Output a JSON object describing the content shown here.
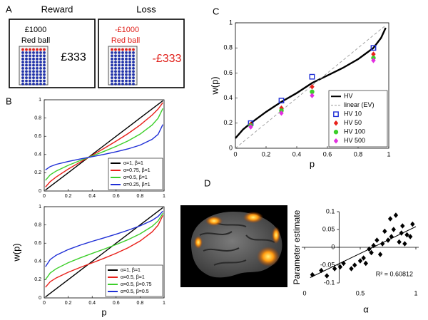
{
  "panel_labels": [
    "A",
    "B",
    "C",
    "D"
  ],
  "panel_a": {
    "reward": {
      "heading": "Reward",
      "amount": "£1000",
      "outcome": "Red ball",
      "value": "£333"
    },
    "loss": {
      "heading": "Loss",
      "amount": "-£1000",
      "outcome": "Red ball",
      "value": "-£333"
    }
  },
  "chart_data": [
    {
      "type": "line",
      "x": [
        0.01,
        0.05,
        0.1,
        0.2,
        0.3,
        0.4,
        0.5,
        0.6,
        0.7,
        0.8,
        0.9,
        0.95,
        0.99
      ],
      "xlim": [
        0,
        1
      ],
      "ylim": [
        0,
        1
      ],
      "xticks": [
        0,
        0.2,
        0.4,
        0.6,
        0.8,
        1
      ],
      "yticks": [
        0,
        0.2,
        0.4,
        0.6,
        0.8,
        1
      ],
      "legend": "lower right",
      "series": [
        {
          "name": "α=1, β=1",
          "color": "#000000",
          "style": "solid",
          "values": [
            0.01,
            0.05,
            0.1,
            0.2,
            0.3,
            0.4,
            0.5,
            0.6,
            0.7,
            0.8,
            0.9,
            0.95,
            0.99
          ]
        },
        {
          "name": "α=0.75, β=1",
          "color": "#e8201a",
          "style": "solid",
          "values": [
            0.043,
            0.103,
            0.154,
            0.24,
            0.317,
            0.392,
            0.468,
            0.547,
            0.63,
            0.723,
            0.832,
            0.898,
            0.969
          ]
        },
        {
          "name": "α=0.5, β=1",
          "color": "#3ccf2a",
          "style": "solid",
          "values": [
            0.117,
            0.177,
            0.219,
            0.281,
            0.334,
            0.384,
            0.435,
            0.489,
            0.55,
            0.624,
            0.723,
            0.797,
            0.905
          ]
        },
        {
          "name": "α=0.25, β=1",
          "color": "#1f2fd6",
          "style": "solid",
          "values": [
            0.231,
            0.268,
            0.292,
            0.324,
            0.351,
            0.376,
            0.402,
            0.43,
            0.462,
            0.503,
            0.566,
            0.621,
            0.729
          ]
        }
      ]
    },
    {
      "type": "line",
      "x": [
        0.01,
        0.05,
        0.1,
        0.2,
        0.3,
        0.4,
        0.5,
        0.6,
        0.7,
        0.8,
        0.9,
        0.95,
        0.99
      ],
      "xlabel": "p",
      "ylabel": "w(p)",
      "xlim": [
        0,
        1
      ],
      "ylim": [
        0,
        1
      ],
      "xticks": [
        0,
        0.2,
        0.4,
        0.6,
        0.8,
        1
      ],
      "yticks": [
        0,
        0.2,
        0.4,
        0.6,
        0.8,
        1
      ],
      "legend": "lower right",
      "series": [
        {
          "name": "α=1, β=1",
          "color": "#000000",
          "style": "solid",
          "values": [
            0.01,
            0.05,
            0.1,
            0.2,
            0.3,
            0.4,
            0.5,
            0.6,
            0.7,
            0.8,
            0.9,
            0.95,
            0.99
          ]
        },
        {
          "name": "α=0.5, β=1",
          "color": "#e8201a",
          "style": "solid",
          "values": [
            0.117,
            0.177,
            0.219,
            0.281,
            0.334,
            0.384,
            0.435,
            0.489,
            0.55,
            0.624,
            0.723,
            0.797,
            0.905
          ]
        },
        {
          "name": "α=0.5, β=0.75",
          "color": "#3ccf2a",
          "style": "solid",
          "values": [
            0.2,
            0.273,
            0.32,
            0.386,
            0.439,
            0.488,
            0.535,
            0.585,
            0.639,
            0.702,
            0.784,
            0.844,
            0.928
          ]
        },
        {
          "name": "α=0.5, β=0.5",
          "color": "#1f2fd6",
          "style": "solid",
          "values": [
            0.342,
            0.421,
            0.468,
            0.53,
            0.578,
            0.62,
            0.659,
            0.699,
            0.742,
            0.79,
            0.85,
            0.893,
            0.951
          ]
        }
      ]
    },
    {
      "type": "line",
      "xlabel": "p",
      "ylabel": "w(p)",
      "xlim": [
        0,
        1
      ],
      "ylim": [
        0,
        1
      ],
      "xticks": [
        0,
        0.2,
        0.4,
        0.6,
        0.8,
        1
      ],
      "yticks": [
        0,
        0.2,
        0.4,
        0.6,
        0.8,
        1
      ],
      "legend": "lower right",
      "series": [
        {
          "name": "HV",
          "color": "#000000",
          "style": "solid",
          "x": [
            0,
            0.05,
            0.1,
            0.2,
            0.3,
            0.4,
            0.5,
            0.6,
            0.7,
            0.8,
            0.9,
            0.95,
            0.98
          ],
          "values": [
            0.08,
            0.15,
            0.2,
            0.29,
            0.37,
            0.44,
            0.52,
            0.58,
            0.64,
            0.71,
            0.8,
            0.88,
            0.96
          ]
        },
        {
          "name": "linear (EV)",
          "color": "#999999",
          "style": "dashed",
          "x": [
            0,
            0.98
          ],
          "values": [
            0,
            0.98
          ]
        },
        {
          "name": "HV 10",
          "color": "#1f2fd6",
          "style": "square",
          "x": [
            0.1,
            0.3,
            0.5,
            0.9
          ],
          "values": [
            0.2,
            0.38,
            0.57,
            0.8
          ]
        },
        {
          "name": "HV 50",
          "color": "#e8201a",
          "style": "diamond",
          "x": [
            0.1,
            0.3,
            0.5,
            0.9
          ],
          "values": [
            0.19,
            0.32,
            0.49,
            0.75
          ]
        },
        {
          "name": "HV 100",
          "color": "#3ccf2a",
          "style": "circle",
          "x": [
            0.1,
            0.3,
            0.5,
            0.9
          ],
          "values": [
            0.18,
            0.3,
            0.45,
            0.72
          ]
        },
        {
          "name": "HV 500",
          "color": "#e22ee0",
          "style": "diamond",
          "x": [
            0.1,
            0.3,
            0.5,
            0.9
          ],
          "values": [
            0.17,
            0.28,
            0.42,
            0.7
          ]
        }
      ]
    },
    {
      "type": "scatter",
      "xlabel": "α",
      "ylabel": "Parameter estimate",
      "annotation": "R² = 0.60812",
      "xlim": [
        0,
        1
      ],
      "ylim": [
        -0.1,
        0.1
      ],
      "xticks": [
        0,
        0.5,
        1
      ],
      "yticks": [
        -0.1,
        -0.05,
        0,
        0.05,
        0.1
      ],
      "color": "#000000",
      "x": [
        0.07,
        0.15,
        0.2,
        0.27,
        0.32,
        0.35,
        0.42,
        0.45,
        0.5,
        0.53,
        0.55,
        0.58,
        0.6,
        0.62,
        0.65,
        0.68,
        0.7,
        0.72,
        0.75,
        0.77,
        0.78,
        0.8,
        0.82,
        0.85,
        0.87,
        0.88,
        0.9,
        0.92,
        0.95,
        0.97
      ],
      "values": [
        -0.077,
        -0.065,
        -0.08,
        -0.06,
        -0.055,
        -0.045,
        -0.06,
        -0.05,
        -0.038,
        -0.03,
        -0.045,
        -0.005,
        -0.015,
        0.005,
        0.02,
        -0.02,
        0.01,
        0.045,
        0.02,
        0.08,
        0.03,
        0.05,
        0.09,
        0.015,
        0.04,
        0.06,
        0.01,
        0.035,
        0.03,
        0.065
      ],
      "trendline": {
        "x": [
          0.05,
          1
        ],
        "values": [
          -0.085,
          0.058
        ]
      }
    }
  ]
}
